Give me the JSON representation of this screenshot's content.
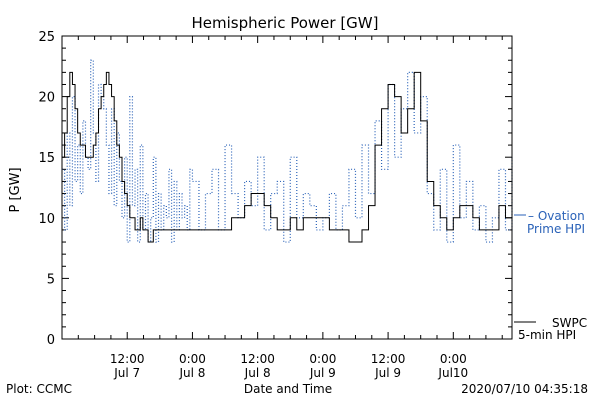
{
  "chart_data": {
    "type": "line",
    "title": "Hemispheric Power [GW]",
    "xlabel": "Date and Time",
    "ylabel": "P [GW]",
    "ylim": [
      0,
      25
    ],
    "yticks": [
      0,
      5,
      10,
      15,
      20,
      25
    ],
    "xlim": [
      0,
      3.45
    ],
    "xunit": "hours since 2020-07-07 00:00 UTC (x / 24)",
    "xticks": [
      {
        "x": 0.5,
        "line1": "12:00",
        "line2": "Jul 7"
      },
      {
        "x": 1.0,
        "line1": "0:00",
        "line2": "Jul 8"
      },
      {
        "x": 1.5,
        "line1": "12:00",
        "line2": "Jul 8"
      },
      {
        "x": 2.0,
        "line1": "0:00",
        "line2": "Jul 9"
      },
      {
        "x": 2.5,
        "line1": "12:00",
        "line2": "Jul 9"
      },
      {
        "x": 3.0,
        "line1": "0:00",
        "line2": "Jul10"
      }
    ],
    "grid": false,
    "series": [
      {
        "name": "SWPC 5-min HPI",
        "style": "solid",
        "color": "#000000",
        "x": [
          0.0,
          0.02,
          0.04,
          0.06,
          0.08,
          0.1,
          0.12,
          0.14,
          0.16,
          0.18,
          0.2,
          0.22,
          0.24,
          0.26,
          0.28,
          0.3,
          0.32,
          0.34,
          0.36,
          0.38,
          0.4,
          0.42,
          0.44,
          0.46,
          0.48,
          0.5,
          0.52,
          0.54,
          0.56,
          0.58,
          0.6,
          0.62,
          0.64,
          0.66,
          0.68,
          0.7,
          0.72,
          0.74,
          0.76,
          0.78,
          0.8,
          0.82,
          0.84,
          0.86,
          0.88,
          0.9,
          0.92,
          0.94,
          0.96,
          0.98,
          1.0,
          1.05,
          1.1,
          1.15,
          1.2,
          1.25,
          1.3,
          1.35,
          1.4,
          1.45,
          1.5,
          1.55,
          1.6,
          1.65,
          1.7,
          1.75,
          1.8,
          1.85,
          1.9,
          1.95,
          2.0,
          2.05,
          2.1,
          2.15,
          2.2,
          2.25,
          2.3,
          2.35,
          2.4,
          2.45,
          2.5,
          2.55,
          2.6,
          2.65,
          2.7,
          2.75,
          2.8,
          2.85,
          2.9,
          2.95,
          3.0,
          3.05,
          3.1,
          3.15,
          3.2,
          3.25,
          3.3,
          3.35,
          3.4,
          3.45
        ],
        "y": [
          15,
          17,
          20,
          22,
          21,
          19,
          17,
          16,
          16,
          15,
          15,
          15,
          16,
          17,
          19,
          20,
          21,
          22,
          21,
          20,
          18,
          16,
          15,
          13,
          12,
          11,
          10,
          10,
          9,
          9,
          10,
          9,
          9,
          8,
          8,
          9,
          9,
          9,
          9,
          9,
          9,
          9,
          9,
          9,
          9,
          9,
          9,
          9,
          9,
          9,
          9,
          9,
          9,
          9,
          9,
          9,
          10,
          10,
          11,
          12,
          12,
          11,
          10,
          9,
          9,
          10,
          9,
          10,
          10,
          10,
          10,
          9,
          9,
          9,
          8,
          8,
          9,
          11,
          16,
          19,
          21,
          20,
          17,
          19,
          22,
          18,
          13,
          11,
          10,
          9,
          10,
          11,
          11,
          10,
          9,
          9,
          9,
          11,
          10,
          10
        ]
      },
      {
        "name": "Ovation Prime HPI",
        "style": "dotted",
        "color": "#2a62b8",
        "x": [
          0.0,
          0.02,
          0.04,
          0.06,
          0.08,
          0.1,
          0.12,
          0.14,
          0.16,
          0.18,
          0.2,
          0.22,
          0.24,
          0.26,
          0.28,
          0.3,
          0.32,
          0.34,
          0.36,
          0.38,
          0.4,
          0.42,
          0.44,
          0.46,
          0.48,
          0.5,
          0.52,
          0.54,
          0.56,
          0.58,
          0.6,
          0.62,
          0.64,
          0.66,
          0.68,
          0.7,
          0.72,
          0.74,
          0.76,
          0.78,
          0.8,
          0.82,
          0.84,
          0.86,
          0.88,
          0.9,
          0.92,
          0.94,
          0.96,
          0.98,
          1.0,
          1.05,
          1.1,
          1.15,
          1.2,
          1.25,
          1.3,
          1.35,
          1.4,
          1.45,
          1.5,
          1.55,
          1.6,
          1.65,
          1.7,
          1.75,
          1.8,
          1.85,
          1.9,
          1.95,
          2.0,
          2.05,
          2.1,
          2.15,
          2.2,
          2.25,
          2.3,
          2.35,
          2.4,
          2.45,
          2.5,
          2.55,
          2.6,
          2.65,
          2.7,
          2.75,
          2.8,
          2.85,
          2.9,
          2.95,
          3.0,
          3.05,
          3.1,
          3.15,
          3.2,
          3.25,
          3.3,
          3.35,
          3.4,
          3.45
        ],
        "y": [
          14,
          9,
          17,
          11,
          20,
          13,
          16,
          12,
          18,
          15,
          14,
          23,
          17,
          13,
          21,
          20,
          19,
          16,
          12,
          19,
          11,
          17,
          13,
          10,
          15,
          8,
          20,
          11,
          14,
          8,
          16,
          9,
          12,
          8,
          10,
          15,
          8,
          12,
          9,
          11,
          10,
          14,
          8,
          13,
          9,
          12,
          10,
          11,
          9,
          14,
          13,
          9,
          12,
          14,
          9,
          16,
          12,
          10,
          13,
          11,
          15,
          9,
          12,
          13,
          8,
          15,
          10,
          12,
          11,
          9,
          10,
          12,
          9,
          11,
          14,
          10,
          16,
          12,
          18,
          14,
          21,
          15,
          19,
          22,
          17,
          20,
          12,
          9,
          14,
          8,
          16,
          10,
          13,
          9,
          11,
          8,
          10,
          14,
          9,
          15
        ]
      }
    ]
  },
  "legend": {
    "solid_line1": "SWPC",
    "solid_line2": "5-min HPI",
    "dotted_line1": "– Ovation",
    "dotted_line2": "Prime HPI"
  },
  "footer": {
    "left": "Plot: CCMC",
    "center": "Date and Time",
    "right": "2020/07/10 04:35:18"
  },
  "colors": {
    "axis": "#000000",
    "accent": "#2a62b8"
  }
}
